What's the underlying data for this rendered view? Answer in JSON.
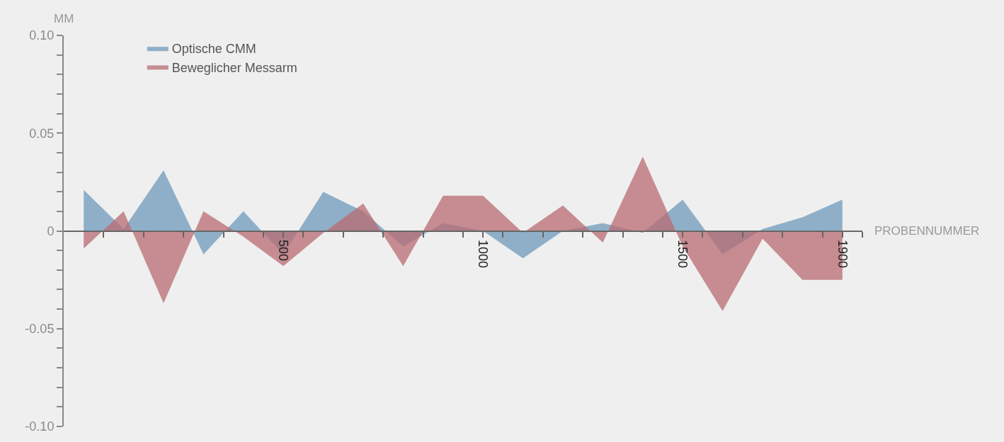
{
  "chart_data": {
    "type": "area",
    "xlabel": "PROBENNUMMER",
    "ylabel": "MM",
    "x": [
      0,
      100,
      200,
      300,
      400,
      500,
      600,
      700,
      800,
      900,
      1000,
      1100,
      1200,
      1300,
      1400,
      1500,
      1600,
      1700,
      1800,
      1900
    ],
    "series": [
      {
        "name": "Optische CMM",
        "color": "#6f9abb",
        "values": [
          0.021,
          0.001,
          0.031,
          -0.012,
          0.01,
          -0.012,
          0.02,
          0.01,
          -0.008,
          0.004,
          0.0,
          -0.014,
          0.0,
          0.004,
          -0.001,
          0.016,
          -0.012,
          0.001,
          0.007,
          0.016
        ]
      },
      {
        "name": "Beweglicher Messarm",
        "color": "#b86b72",
        "values": [
          -0.009,
          0.01,
          -0.037,
          0.01,
          -0.003,
          -0.018,
          -0.001,
          0.014,
          -0.018,
          0.018,
          0.018,
          -0.001,
          0.013,
          -0.006,
          0.038,
          -0.008,
          -0.041,
          -0.004,
          -0.025,
          -0.025
        ]
      }
    ],
    "xlim": [
      -50,
      1950
    ],
    "xticks": [
      {
        "value": 50,
        "label": null
      },
      {
        "value": 150,
        "label": null
      },
      {
        "value": 250,
        "label": null
      },
      {
        "value": 350,
        "label": null
      },
      {
        "value": 450,
        "label": null
      },
      500,
      {
        "value": 550,
        "label": null
      },
      {
        "value": 650,
        "label": null
      },
      {
        "value": 750,
        "label": null
      },
      {
        "value": 850,
        "label": null
      },
      {
        "value": 950,
        "label": null
      },
      1000,
      {
        "value": 1050,
        "label": null
      },
      {
        "value": 1150,
        "label": null
      },
      {
        "value": 1250,
        "label": null
      },
      {
        "value": 1350,
        "label": null
      },
      {
        "value": 1450,
        "label": null
      },
      1500,
      {
        "value": 1550,
        "label": null
      },
      {
        "value": 1650,
        "label": null
      },
      {
        "value": 1750,
        "label": null
      },
      {
        "value": 1850,
        "label": null
      },
      1900,
      {
        "value": 1950,
        "label": null
      }
    ],
    "ylim": [
      -0.1,
      0.1
    ],
    "yticks": [
      {
        "value": 0.1,
        "label": "0.10"
      },
      {
        "value": 0.09,
        "label": null
      },
      {
        "value": 0.08,
        "label": null
      },
      {
        "value": 0.07,
        "label": null
      },
      {
        "value": 0.06,
        "label": null
      },
      0.05,
      {
        "value": 0.04,
        "label": null
      },
      {
        "value": 0.03,
        "label": null
      },
      {
        "value": 0.02,
        "label": null
      },
      {
        "value": 0.01,
        "label": null
      },
      0,
      {
        "value": -0.01,
        "label": null
      },
      {
        "value": -0.02,
        "label": null
      },
      {
        "value": -0.03,
        "label": null
      },
      {
        "value": -0.04,
        "label": null
      },
      -0.05,
      {
        "value": -0.06,
        "label": null
      },
      {
        "value": -0.07,
        "label": null
      },
      {
        "value": -0.08,
        "label": null
      },
      {
        "value": -0.09,
        "label": null
      },
      {
        "value": -0.1,
        "label": "-0.10"
      }
    ],
    "legend": "top left",
    "grid": false
  }
}
